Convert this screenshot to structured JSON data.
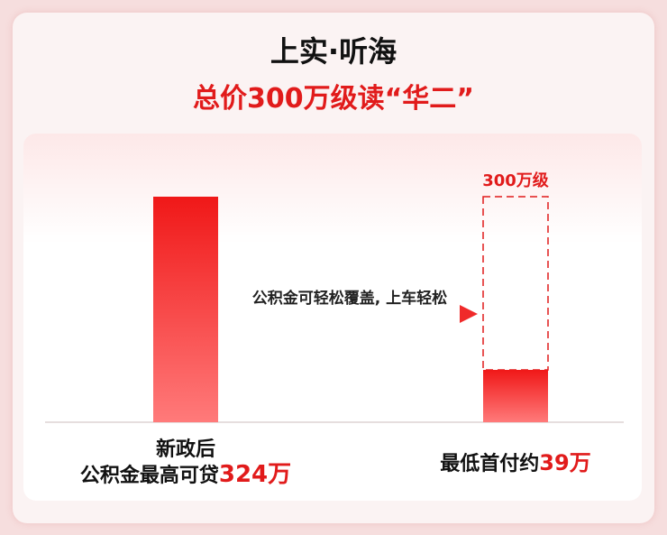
{
  "header": {
    "title": "上实·听海",
    "subtitle": "总价300万级读“华二”"
  },
  "left": {
    "line1": "新政后",
    "line2": "公积金最高可贷",
    "amount": "324万"
  },
  "arrow": {
    "label": "公积金可轻松覆盖, 上车轻松"
  },
  "right": {
    "cap": "300万级",
    "label": "最低首付约",
    "amount": "39万"
  }
}
